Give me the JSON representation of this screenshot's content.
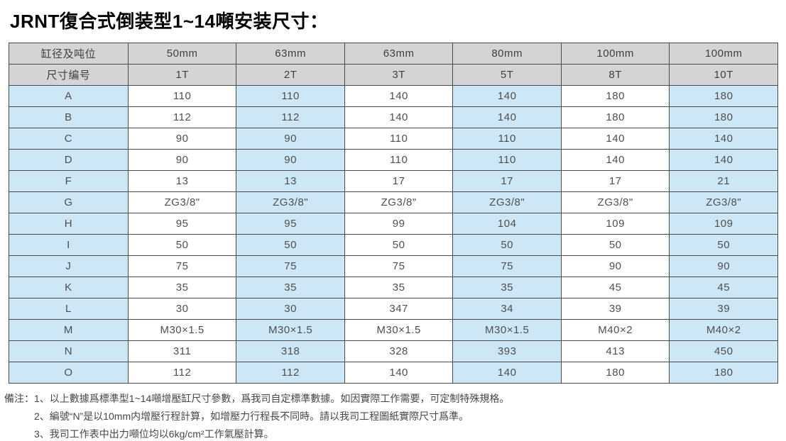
{
  "page": {
    "title": "JRNT復合式倒装型1~14噸安装尺寸："
  },
  "table": {
    "header_row1": [
      "缸径及吨位",
      "50mm",
      "63mm",
      "63mm",
      "80mm",
      "100mm",
      "100mm"
    ],
    "header_row2": [
      "尺寸编号",
      "1T",
      "2T",
      "3T",
      "5T",
      "8T",
      "10T"
    ],
    "rows": [
      {
        "label": "A",
        "values": [
          "110",
          "110",
          "140",
          "140",
          "180",
          "180"
        ]
      },
      {
        "label": "B",
        "values": [
          "112",
          "112",
          "140",
          "140",
          "180",
          "180"
        ]
      },
      {
        "label": "C",
        "values": [
          "90",
          "90",
          "110",
          "110",
          "140",
          "140"
        ]
      },
      {
        "label": "D",
        "values": [
          "90",
          "90",
          "110",
          "110",
          "140",
          "140"
        ]
      },
      {
        "label": "F",
        "values": [
          "13",
          "13",
          "17",
          "17",
          "17",
          "21"
        ]
      },
      {
        "label": "G",
        "values": [
          "ZG3/8\"",
          "ZG3/8\"",
          "ZG3/8\"",
          "ZG3/8\"",
          "ZG3/8\"",
          "ZG3/8\""
        ]
      },
      {
        "label": "H",
        "values": [
          "95",
          "95",
          "99",
          "104",
          "109",
          "109"
        ]
      },
      {
        "label": "I",
        "values": [
          "50",
          "50",
          "50",
          "50",
          "50",
          "50"
        ]
      },
      {
        "label": "J",
        "values": [
          "75",
          "75",
          "75",
          "75",
          "90",
          "90"
        ]
      },
      {
        "label": "K",
        "values": [
          "35",
          "35",
          "35",
          "35",
          "45",
          "45"
        ]
      },
      {
        "label": "L",
        "values": [
          "30",
          "30",
          "347",
          "34",
          "39",
          "39"
        ]
      },
      {
        "label": "M",
        "values": [
          "M30×1.5",
          "M30×1.5",
          "M30×1.5",
          "M30×1.5",
          "M40×2",
          "M40×2"
        ]
      },
      {
        "label": "N",
        "values": [
          "311",
          "318",
          "328",
          "393",
          "413",
          "450"
        ]
      },
      {
        "label": "O",
        "values": [
          "112",
          "112",
          "140",
          "140",
          "180",
          "180"
        ]
      }
    ]
  },
  "notes": {
    "label": "備注：",
    "items": [
      "1、以上數據爲標準型1~14噸增壓缸尺寸參數，爲我司自定標準數據。如因實際工作需要，可定制特殊規格。",
      "2、編號“N”是以10mm内增壓行程計算，如增壓力行程長不同時。請以我司工程圖紙實際尺寸爲準。",
      "3、我司工作表中出力噸位均以6kg/cm²工作氣壓計算。"
    ]
  },
  "colors": {
    "header_bg": "#d4d4d4",
    "blue_cell_bg": "#cde7f6",
    "border": "#4a4a4a",
    "cell_text": "#4f4f4f",
    "title_text": "#000000"
  }
}
